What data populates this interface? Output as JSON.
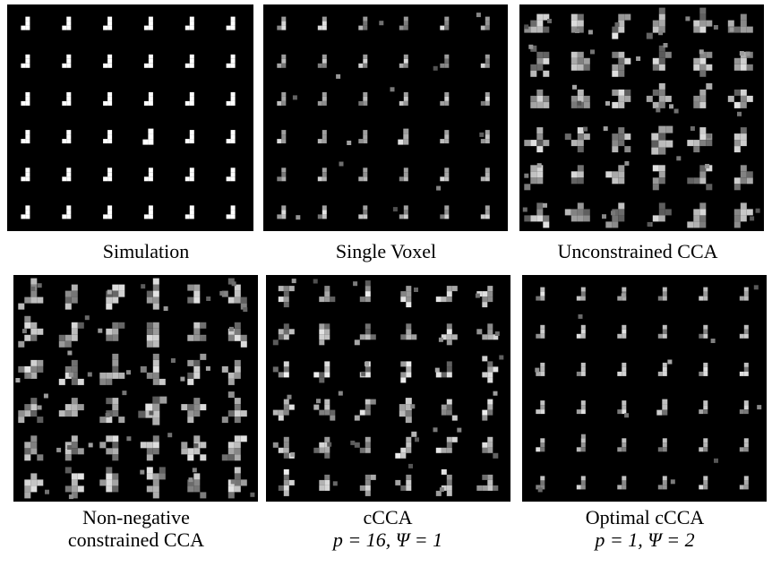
{
  "panels": [
    {
      "id": "simulation",
      "caption": [
        "Simulation"
      ],
      "style": "binary"
    },
    {
      "id": "single-voxel",
      "caption": [
        "Single Voxel"
      ],
      "style": "sparse"
    },
    {
      "id": "unconstrained-cca",
      "caption": [
        "Unconstrained CCA"
      ],
      "style": "blobby"
    },
    {
      "id": "non-negative-cca",
      "caption": [
        "Non-negative",
        "constrained CCA"
      ],
      "style": "blobby"
    },
    {
      "id": "ccca",
      "caption": [
        "cCCA",
        "p = 16, Ψ = 1"
      ],
      "style": "medium"
    },
    {
      "id": "optimal-ccca",
      "caption": [
        "Optimal cCCA",
        "p = 1, Ψ = 2"
      ],
      "style": "sparse"
    }
  ]
}
